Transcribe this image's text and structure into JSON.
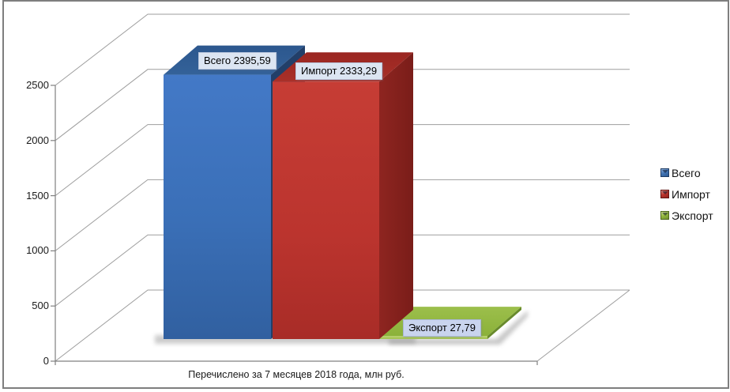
{
  "chart_data": {
    "type": "bar",
    "projection": "3d",
    "title": "",
    "xlabel": "Перечислено  за 7 месяцев  2018 года, млн руб.",
    "ylabel": "",
    "ylim": [
      0,
      2500
    ],
    "ytick_step": 500,
    "yticks": [
      "0",
      "500",
      "1000",
      "1500",
      "2000",
      "2500"
    ],
    "grid": true,
    "legend_position": "right",
    "categories": [
      "за 7 месяцев 2018 года"
    ],
    "series": [
      {
        "name": "Всего",
        "value": 2395.59,
        "data_label": "Всего 2395,59",
        "color": "#3a6fb8"
      },
      {
        "name": "Импорт",
        "value": 2333.29,
        "data_label": "Импорт 2333,29",
        "color": "#bd3530"
      },
      {
        "name": "Экспорт",
        "value": 27.79,
        "data_label": "Экспорт 27,79",
        "color": "#92b741"
      }
    ]
  },
  "frame": {
    "border_color": "#7e7e7e",
    "background": "#ffffff"
  },
  "axis": {
    "line_color": "#808080",
    "grid_color": "#9e9e9e",
    "tick_text_color": "#1a1a1a"
  }
}
